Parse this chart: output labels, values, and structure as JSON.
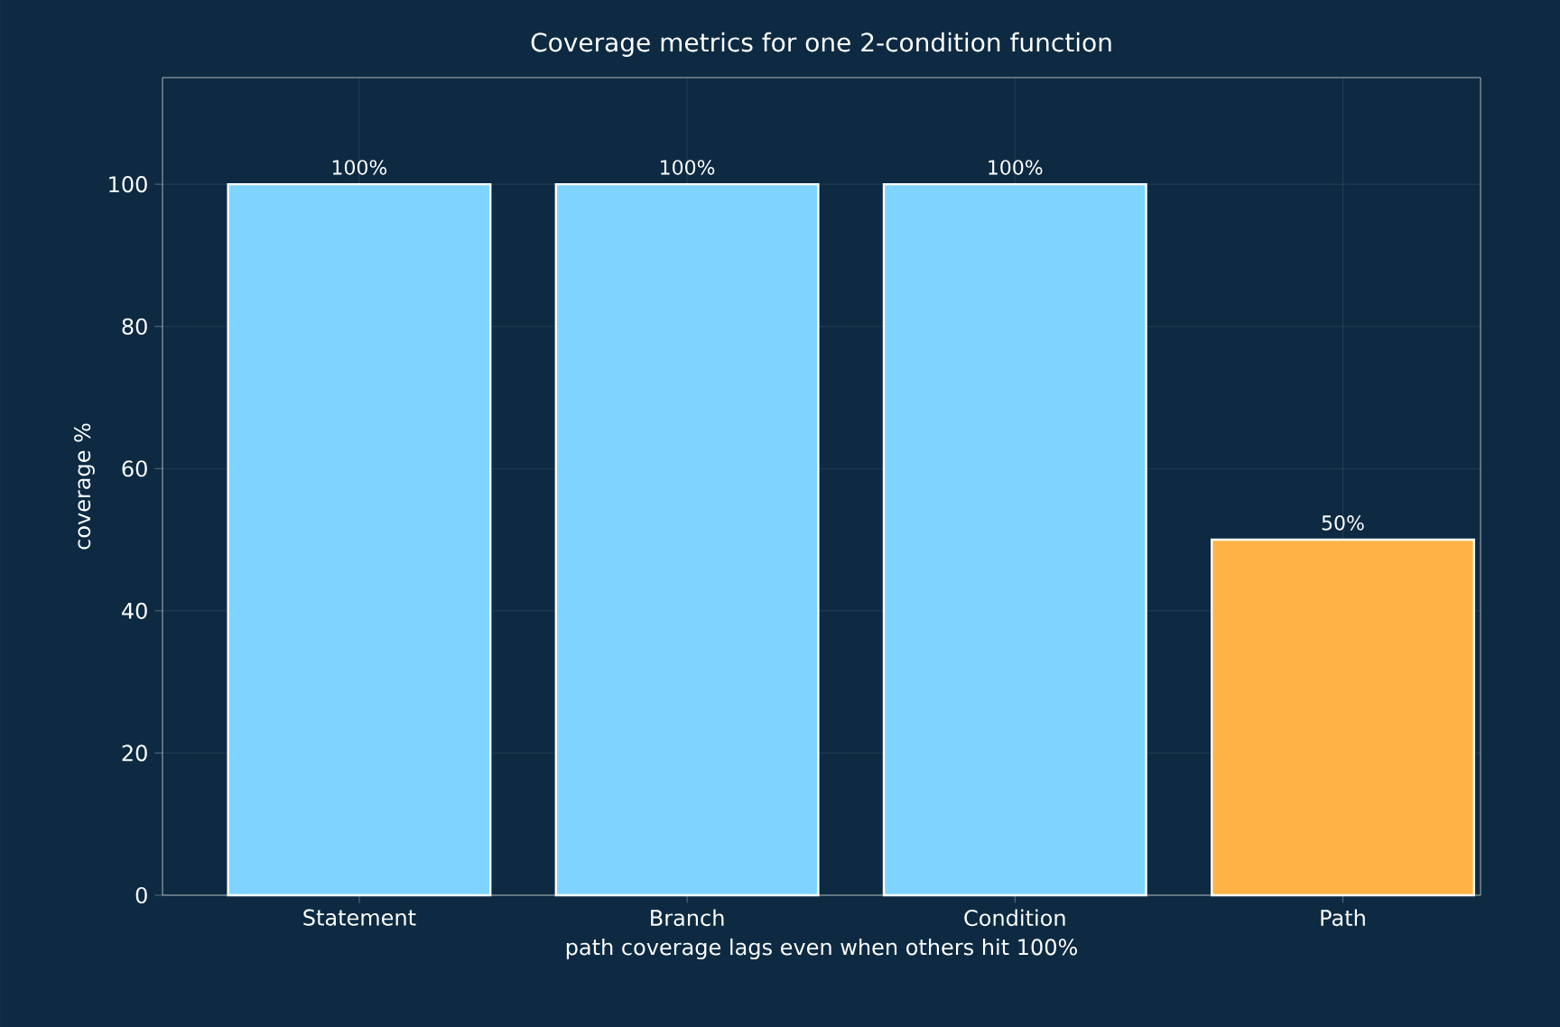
{
  "chart_data": {
    "type": "bar",
    "title": "Coverage metrics for one 2-condition function",
    "categories": [
      "Statement",
      "Branch",
      "Condition",
      "Path"
    ],
    "values": [
      100,
      100,
      100,
      50
    ],
    "colors": [
      "#7fd4ff",
      "#7fd4ff",
      "#7fd4ff",
      "#ffb347"
    ],
    "value_labels": [
      "100%",
      "100%",
      "100%",
      "50%"
    ],
    "ylabel": "coverage %",
    "xlabel": "path coverage lags even when others hit 100%",
    "ylim": [
      0,
      115
    ],
    "yticks": [
      0,
      20,
      40,
      60,
      80,
      100
    ],
    "grid": true
  }
}
